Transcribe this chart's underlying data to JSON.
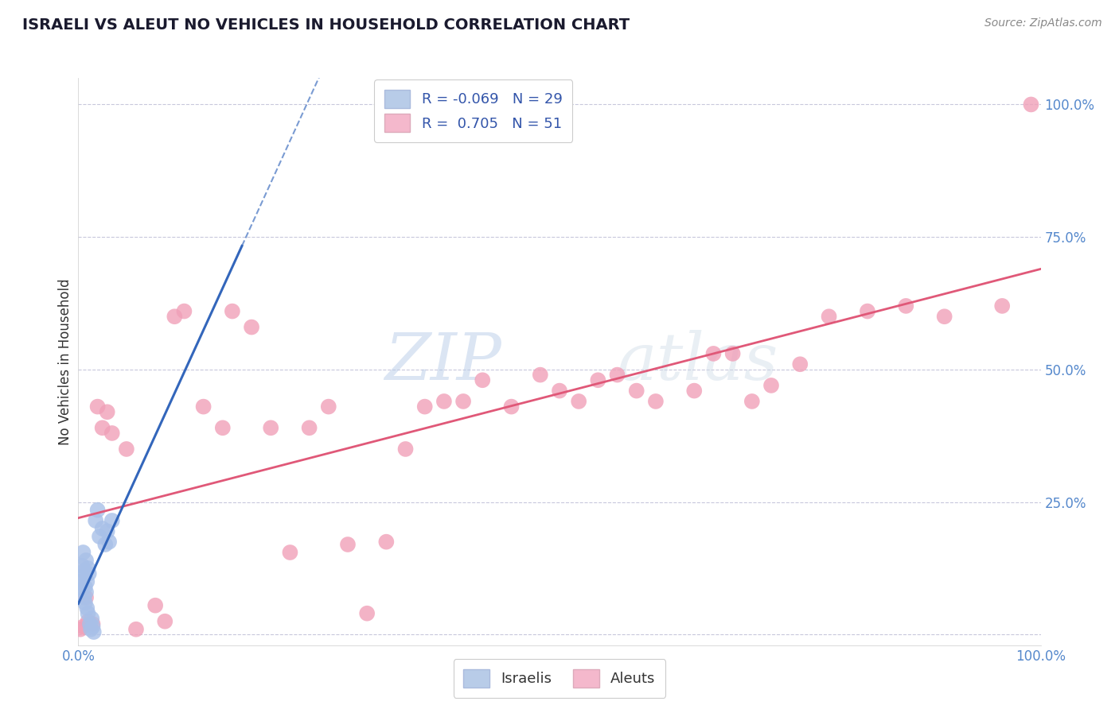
{
  "title": "ISRAELI VS ALEUT NO VEHICLES IN HOUSEHOLD CORRELATION CHART",
  "source_text": "Source: ZipAtlas.com",
  "ylabel": "No Vehicles in Household",
  "background_color": "#ffffff",
  "grid_color": "#c8c8dc",
  "watermark_zip": "ZIP",
  "watermark_atlas": "atlas",
  "R_israeli": -0.069,
  "N_israeli": 29,
  "R_aleut": 0.705,
  "N_aleut": 51,
  "israeli_color": "#a8c0e8",
  "aleut_color": "#f0a0b8",
  "israeli_line_color": "#3366bb",
  "aleut_line_color": "#e05878",
  "legend_box_color": "#b8cce8",
  "legend_box_color2": "#f4b8cc",
  "ytick_values": [
    0.0,
    0.25,
    0.5,
    0.75,
    1.0
  ],
  "ytick_labels": [
    "",
    "25.0%",
    "50.0%",
    "75.0%",
    "100.0%"
  ],
  "xlim": [
    0.0,
    1.0
  ],
  "ylim": [
    -0.02,
    1.05
  ],
  "israeli_x": [
    0.002,
    0.003,
    0.004,
    0.005,
    0.005,
    0.006,
    0.006,
    0.007,
    0.007,
    0.008,
    0.008,
    0.009,
    0.009,
    0.01,
    0.01,
    0.011,
    0.012,
    0.013,
    0.014,
    0.015,
    0.016,
    0.018,
    0.02,
    0.022,
    0.025,
    0.028,
    0.03,
    0.032,
    0.035
  ],
  "israeli_y": [
    0.1,
    0.085,
    0.13,
    0.11,
    0.155,
    0.07,
    0.12,
    0.09,
    0.06,
    0.08,
    0.14,
    0.1,
    0.05,
    0.125,
    0.04,
    0.115,
    0.02,
    0.01,
    0.03,
    0.015,
    0.005,
    0.215,
    0.235,
    0.185,
    0.2,
    0.17,
    0.195,
    0.175,
    0.215
  ],
  "aleut_x": [
    0.002,
    0.005,
    0.008,
    0.01,
    0.015,
    0.02,
    0.025,
    0.03,
    0.035,
    0.05,
    0.06,
    0.08,
    0.09,
    0.1,
    0.11,
    0.13,
    0.15,
    0.16,
    0.18,
    0.2,
    0.22,
    0.24,
    0.26,
    0.28,
    0.3,
    0.32,
    0.34,
    0.36,
    0.38,
    0.4,
    0.42,
    0.45,
    0.48,
    0.5,
    0.52,
    0.54,
    0.56,
    0.58,
    0.6,
    0.64,
    0.66,
    0.68,
    0.7,
    0.72,
    0.75,
    0.78,
    0.82,
    0.86,
    0.9,
    0.96,
    0.99
  ],
  "aleut_y": [
    0.01,
    0.015,
    0.07,
    0.025,
    0.02,
    0.43,
    0.39,
    0.42,
    0.38,
    0.35,
    0.01,
    0.055,
    0.025,
    0.6,
    0.61,
    0.43,
    0.39,
    0.61,
    0.58,
    0.39,
    0.155,
    0.39,
    0.43,
    0.17,
    0.04,
    0.175,
    0.35,
    0.43,
    0.44,
    0.44,
    0.48,
    0.43,
    0.49,
    0.46,
    0.44,
    0.48,
    0.49,
    0.46,
    0.44,
    0.46,
    0.53,
    0.53,
    0.44,
    0.47,
    0.51,
    0.6,
    0.61,
    0.62,
    0.6,
    0.62,
    1.0
  ]
}
